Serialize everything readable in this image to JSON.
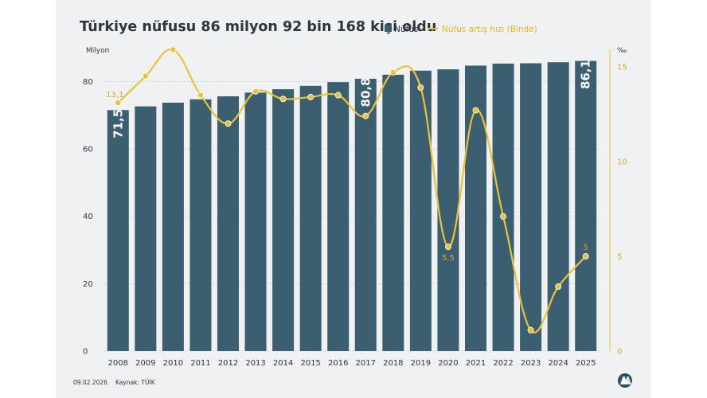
{
  "chart_data": {
    "type": "bar+line",
    "title": "Türkiye nüfusu 86 milyon 92 bin 168 kişi oldu",
    "legend": {
      "position": "top-right"
    },
    "left_axis_unit": "Milyon",
    "right_axis_unit": "‰",
    "left_ylim": [
      0,
      90
    ],
    "right_ylim": [
      0,
      16
    ],
    "left_ticks": [
      0,
      20,
      40,
      60,
      80
    ],
    "right_ticks": [
      0,
      5,
      10,
      15
    ],
    "grid": "horizontal-dashed",
    "categories": [
      "2008",
      "2009",
      "2010",
      "2011",
      "2012",
      "2013",
      "2014",
      "2015",
      "2016",
      "2017",
      "2018",
      "2019",
      "2020",
      "2021",
      "2022",
      "2023",
      "2024",
      "2025"
    ],
    "series": [
      {
        "name": "Nüfus",
        "type": "bar",
        "axis": "left",
        "color": "#3b5f70",
        "values": [
          71.5,
          72.6,
          73.7,
          74.7,
          75.6,
          76.7,
          77.7,
          78.7,
          79.8,
          80.8,
          82.0,
          83.2,
          83.6,
          84.7,
          85.3,
          85.4,
          85.7,
          86.1
        ],
        "labels": [
          {
            "index": 0,
            "text": "71,5"
          },
          {
            "index": 9,
            "text": "80,8"
          },
          {
            "index": 17,
            "text": "86,1"
          }
        ]
      },
      {
        "name": "Nüfus artış hızı (Binde)",
        "type": "line",
        "axis": "right",
        "color": "#e8c33a",
        "values": [
          13.1,
          14.5,
          15.9,
          13.5,
          12.0,
          13.7,
          13.3,
          13.4,
          13.5,
          12.4,
          14.7,
          13.9,
          5.5,
          12.7,
          7.1,
          1.1,
          3.4,
          5.0
        ],
        "labels": [
          {
            "index": 0,
            "text": "13,1"
          },
          {
            "index": 12,
            "text": "5,5"
          },
          {
            "index": 17,
            "text": "5"
          }
        ]
      }
    ]
  },
  "footer": {
    "date": "09.02.2026",
    "source": "Kaynak: TÜİK"
  }
}
